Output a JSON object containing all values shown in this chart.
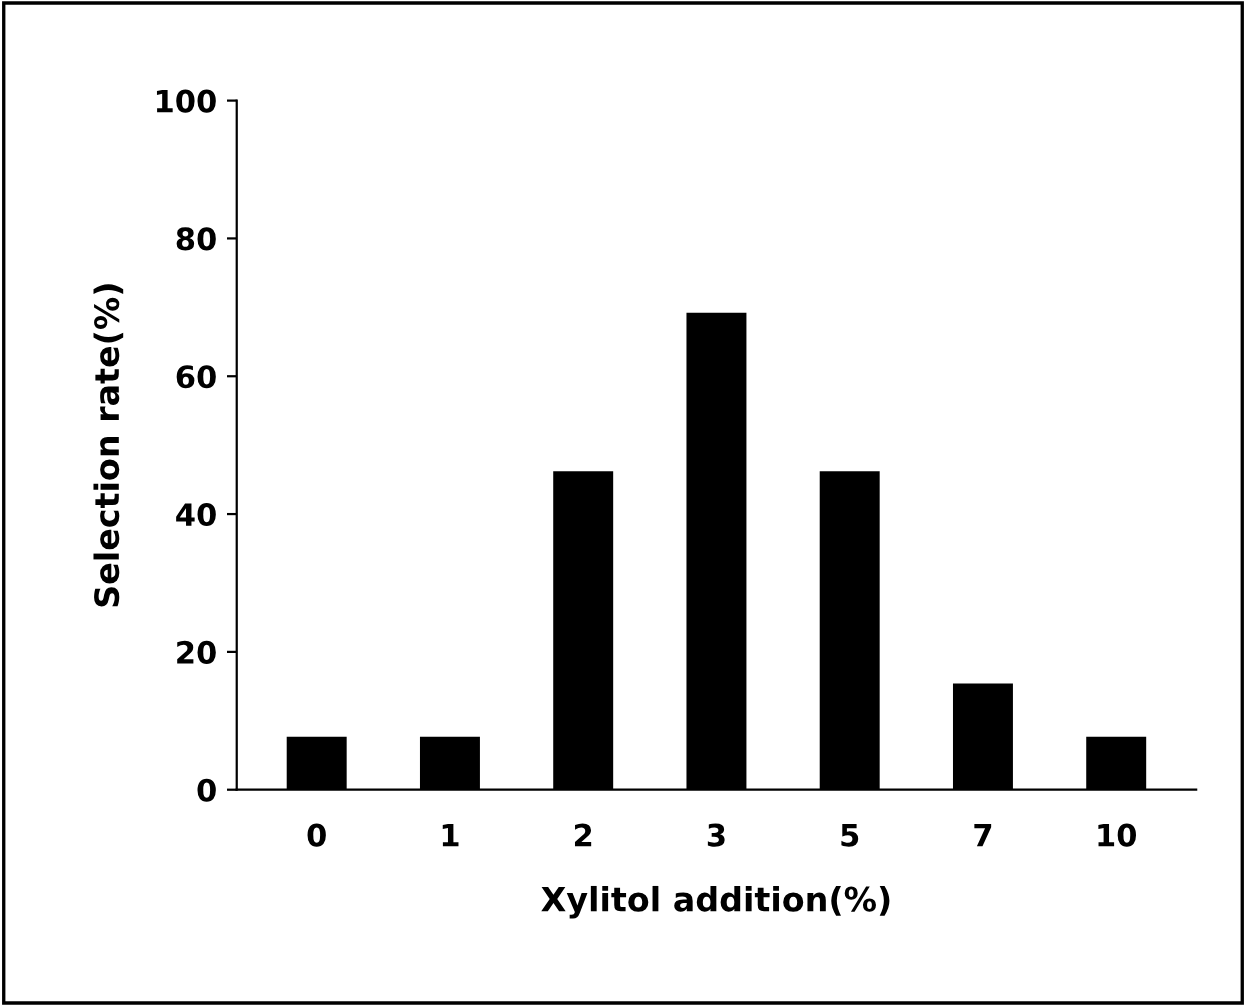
{
  "chart_data": {
    "type": "bar",
    "xlabel": "Xylitol addition(%)",
    "ylabel": "Selection rate(%)",
    "categories": [
      "0",
      "1",
      "2",
      "3",
      "5",
      "7",
      "10"
    ],
    "values": [
      7.7,
      7.7,
      46.2,
      69.2,
      46.2,
      15.4,
      7.7
    ],
    "color": "#000000",
    "ylim": [
      0,
      100
    ],
    "yticks": [
      0,
      20,
      40,
      60,
      80,
      100
    ],
    "grid": false
  }
}
